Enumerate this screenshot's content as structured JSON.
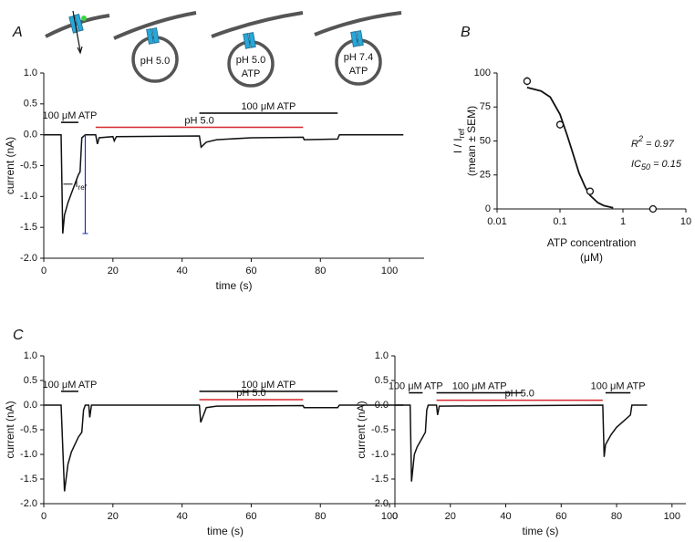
{
  "diagrams": [
    {
      "labels": [
        {
          "text": "pH 5.0",
          "color": "#d6262b"
        }
      ]
    },
    {
      "labels": [
        {
          "text": "pH 5.0",
          "color": "#d6262b"
        },
        {
          "text": "ATP",
          "color": "#3ed43e"
        }
      ]
    },
    {
      "labels": [
        {
          "text": "pH 7.4",
          "color": "#1a2fbf"
        },
        {
          "text": "ATP",
          "color": "#3ed43e"
        }
      ]
    }
  ],
  "chart_data": [
    {
      "type": "line",
      "panel": "A",
      "xlabel": "time (s)",
      "ylabel": "current (nA)",
      "xlim": [
        0,
        110
      ],
      "xticks": [
        0,
        20,
        40,
        60,
        80,
        100
      ],
      "ylim": [
        -2,
        1
      ],
      "yticks": [
        {
          "value": -2,
          "label": "-2.0"
        },
        {
          "value": -1.5,
          "label": "-1.5"
        },
        {
          "value": -1,
          "label": "-1.0"
        },
        {
          "value": -0.5,
          "label": "-0.5"
        },
        {
          "value": 0,
          "label": "0.0"
        },
        {
          "value": 0.5,
          "label": "0.5"
        },
        {
          "value": 1,
          "label": "1.0"
        }
      ],
      "series": [
        {
          "color": "#111111",
          "x": [
            0,
            5,
            5.5,
            6,
            7,
            8,
            9,
            10,
            10.5,
            11,
            12,
            15,
            15.5,
            16,
            20,
            20.4,
            21,
            45,
            45.5,
            47,
            50,
            60,
            75,
            75.3,
            85,
            85.5,
            104
          ],
          "values": [
            0,
            0,
            -1.6,
            -1.3,
            -1.1,
            -0.95,
            -0.8,
            -0.65,
            -0.6,
            -0.05,
            0,
            0,
            -0.15,
            -0.05,
            -0.03,
            -0.1,
            -0.03,
            -0.02,
            -0.2,
            -0.12,
            -0.08,
            -0.05,
            -0.04,
            -0.08,
            -0.07,
            0,
            0
          ]
        }
      ],
      "applications": [
        {
          "label": "100 μM ATP",
          "start": 5,
          "end": 10,
          "color": "#000000"
        },
        {
          "label": "pH 5.0",
          "start": 15,
          "end": 75,
          "color": "#d6262b"
        },
        {
          "label": "100 μM ATP",
          "start": 45,
          "end": 85,
          "color": "#000000"
        }
      ],
      "reference": {
        "main": "I",
        "sub": "ref",
        "x": 12,
        "y0": 0,
        "y1": -1.6,
        "color": "#1a2fbf"
      }
    },
    {
      "type": "scatter",
      "panel": "B",
      "xlabel": [
        "ATP concentration",
        "(μM)"
      ],
      "ylabel": {
        "main": "I / I",
        "sub": "ref",
        "second": "(mean ± SEM)"
      },
      "log_x": true,
      "xlim": [
        0.01,
        10
      ],
      "xticks": [
        0.01,
        0.1,
        1,
        10
      ],
      "ylim": [
        0,
        100
      ],
      "yticks": [
        0,
        25,
        50,
        75,
        100
      ],
      "x": [
        0.03,
        0.1,
        0.3,
        3
      ],
      "values": [
        94,
        62,
        13,
        0
      ],
      "errors": [
        3,
        3,
        1,
        0
      ],
      "fit": {
        "x": [
          0.03,
          0.05,
          0.07,
          0.1,
          0.13,
          0.15,
          0.2,
          0.25,
          0.3,
          0.4,
          0.5,
          0.7
        ],
        "values": [
          89.3,
          86.8,
          82.3,
          69.6,
          54,
          45,
          26.5,
          16.3,
          10,
          4.6,
          2.4,
          0.9
        ]
      },
      "annotations": [
        {
          "main": "R",
          "sup": "2",
          "rest": " = 0.97"
        },
        {
          "main": "IC",
          "sub": "50",
          "rest": " = 0.15"
        }
      ]
    },
    {
      "type": "line",
      "panel": "C",
      "xlabel": "time (s)",
      "ylabel": "current (nA)",
      "xlim": [
        0,
        105
      ],
      "xticks": [
        0,
        20,
        40,
        60,
        80,
        100
      ],
      "ylim": [
        -2,
        1
      ],
      "yticks": [
        {
          "value": -2,
          "label": "-2.0"
        },
        {
          "value": -1.5,
          "label": "-1.5"
        },
        {
          "value": -1,
          "label": "-1.0"
        },
        {
          "value": -0.5,
          "label": "-0.5"
        },
        {
          "value": 0,
          "label": "0.0"
        },
        {
          "value": 0.5,
          "label": "0.5"
        },
        {
          "value": 1,
          "label": "1.0"
        }
      ],
      "series": [
        {
          "color": "#111111",
          "x": [
            0,
            5,
            6,
            7,
            8,
            9,
            10,
            11,
            11.5,
            12,
            13,
            13.3,
            13.8,
            45,
            45.4,
            47,
            50,
            75,
            75.3,
            85,
            85.5,
            104
          ],
          "values": [
            0,
            0,
            -1.75,
            -1.2,
            -0.95,
            -0.8,
            -0.65,
            -0.55,
            -0.1,
            0,
            0,
            -0.25,
            0,
            0,
            -0.35,
            -0.05,
            -0.02,
            -0.01,
            -0.05,
            -0.05,
            0,
            0
          ]
        }
      ],
      "applications": [
        {
          "label": "100 μM ATP",
          "start": 5,
          "end": 10,
          "color": "#000000"
        },
        {
          "label": "pH 5.0",
          "start": 45,
          "end": 75,
          "color": "#d6262b"
        },
        {
          "label": "100 μM ATP",
          "start": 45,
          "end": 85,
          "color": "#000000"
        }
      ]
    },
    {
      "type": "line",
      "xlabel": "time (s)",
      "ylabel": "current (nA)",
      "xlim": [
        0,
        105
      ],
      "xticks": [
        0,
        20,
        40,
        60,
        80,
        100
      ],
      "ylim": [
        -2,
        1
      ],
      "yticks": [
        {
          "value": -2,
          "label": "-2.0"
        },
        {
          "value": -1.5,
          "label": "-1.5"
        },
        {
          "value": -1,
          "label": "-1.0"
        },
        {
          "value": -0.5,
          "label": "-0.5"
        },
        {
          "value": 0,
          "label": "0.0"
        },
        {
          "value": 0.5,
          "label": "0.5"
        },
        {
          "value": 1,
          "label": "1.0"
        }
      ],
      "series": [
        {
          "color": "#111111",
          "x": [
            0,
            5.5,
            6,
            7,
            8,
            10,
            11,
            11.5,
            12,
            15,
            15.4,
            16,
            75,
            75.5,
            76,
            78,
            80,
            83,
            85,
            85.5,
            91
          ],
          "values": [
            0,
            0,
            -1.55,
            -1.0,
            -0.85,
            -0.65,
            -0.55,
            -0.1,
            0,
            0,
            -0.2,
            -0.02,
            0,
            -1.05,
            -0.8,
            -0.6,
            -0.45,
            -0.3,
            -0.2,
            0,
            0
          ]
        }
      ],
      "applications": [
        {
          "label": "100 μM ATP",
          "start": 5,
          "end": 10,
          "color": "#000000"
        },
        {
          "label": "100 μM ATP",
          "start": 15,
          "end": 46,
          "color": "#000000"
        },
        {
          "label": "pH 5.0",
          "start": 15,
          "end": 75,
          "color": "#d6262b"
        },
        {
          "label": "100 μM ATP",
          "start": 76,
          "end": 85,
          "color": "#000000"
        }
      ]
    }
  ]
}
